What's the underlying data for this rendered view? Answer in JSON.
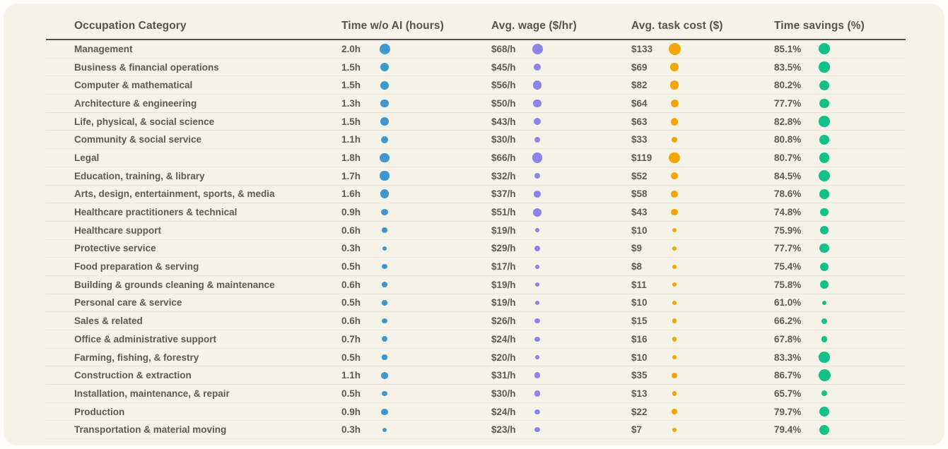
{
  "colors": {
    "page_background": "#fdfcf8",
    "card_background": "#f5f2e8",
    "header_line": "#54524b",
    "header_text": "#56544c",
    "text": "#5d5b51",
    "row_separator": "#e8e5d7",
    "time_dot": "#3e98cf",
    "wage_dot": "#8c84ea",
    "cost_dot": "#f4a600",
    "savings_dot": "#12c088"
  },
  "table": {
    "columns": [
      {
        "label": "Occupation Category"
      },
      {
        "label": "Time w/o AI (hours)"
      },
      {
        "label": "Avg. wage ($/hr)"
      },
      {
        "label": "Avg. task cost ($)"
      },
      {
        "label": "Time savings (%)"
      }
    ],
    "rows": [
      {
        "occupation": "Management",
        "time": "2.0h",
        "time_h": 2.0,
        "wage": "$68/h",
        "wage_hr": 68,
        "cost": "$133",
        "cost_usd": 133,
        "savings": "85.1%",
        "savings_pct": 85.1
      },
      {
        "occupation": "Business & financial operations",
        "time": "1.5h",
        "time_h": 1.5,
        "wage": "$45/h",
        "wage_hr": 45,
        "cost": "$69",
        "cost_usd": 69,
        "savings": "83.5%",
        "savings_pct": 83.5
      },
      {
        "occupation": "Computer & mathematical",
        "time": "1.5h",
        "time_h": 1.5,
        "wage": "$56/h",
        "wage_hr": 56,
        "cost": "$82",
        "cost_usd": 82,
        "savings": "80.2%",
        "savings_pct": 80.2
      },
      {
        "occupation": "Architecture & engineering",
        "time": "1.3h",
        "time_h": 1.3,
        "wage": "$50/h",
        "wage_hr": 50,
        "cost": "$64",
        "cost_usd": 64,
        "savings": "77.7%",
        "savings_pct": 77.7
      },
      {
        "occupation": "Life, physical, & social science",
        "time": "1.5h",
        "time_h": 1.5,
        "wage": "$43/h",
        "wage_hr": 43,
        "cost": "$63",
        "cost_usd": 63,
        "savings": "82.8%",
        "savings_pct": 82.8
      },
      {
        "occupation": "Community & social service",
        "time": "1.1h",
        "time_h": 1.1,
        "wage": "$30/h",
        "wage_hr": 30,
        "cost": "$33",
        "cost_usd": 33,
        "savings": "80.8%",
        "savings_pct": 80.8
      },
      {
        "occupation": "Legal",
        "time": "1.8h",
        "time_h": 1.8,
        "wage": "$66/h",
        "wage_hr": 66,
        "cost": "$119",
        "cost_usd": 119,
        "savings": "80.7%",
        "savings_pct": 80.7
      },
      {
        "occupation": "Education, training, & library",
        "time": "1.7h",
        "time_h": 1.7,
        "wage": "$32/h",
        "wage_hr": 32,
        "cost": "$52",
        "cost_usd": 52,
        "savings": "84.5%",
        "savings_pct": 84.5
      },
      {
        "occupation": "Arts, design, entertainment, sports, & media",
        "time": "1.6h",
        "time_h": 1.6,
        "wage": "$37/h",
        "wage_hr": 37,
        "cost": "$58",
        "cost_usd": 58,
        "savings": "78.6%",
        "savings_pct": 78.6
      },
      {
        "occupation": "Healthcare practitioners & technical",
        "time": "0.9h",
        "time_h": 0.9,
        "wage": "$51/h",
        "wage_hr": 51,
        "cost": "$43",
        "cost_usd": 43,
        "savings": "74.8%",
        "savings_pct": 74.8
      },
      {
        "occupation": "Healthcare support",
        "time": "0.6h",
        "time_h": 0.6,
        "wage": "$19/h",
        "wage_hr": 19,
        "cost": "$10",
        "cost_usd": 10,
        "savings": "75.9%",
        "savings_pct": 75.9
      },
      {
        "occupation": "Protective service",
        "time": "0.3h",
        "time_h": 0.3,
        "wage": "$29/h",
        "wage_hr": 29,
        "cost": "$9",
        "cost_usd": 9,
        "savings": "77.7%",
        "savings_pct": 77.7
      },
      {
        "occupation": "Food preparation & serving",
        "time": "0.5h",
        "time_h": 0.5,
        "wage": "$17/h",
        "wage_hr": 17,
        "cost": "$8",
        "cost_usd": 8,
        "savings": "75.4%",
        "savings_pct": 75.4
      },
      {
        "occupation": "Building & grounds cleaning & maintenance",
        "time": "0.6h",
        "time_h": 0.6,
        "wage": "$19/h",
        "wage_hr": 19,
        "cost": "$11",
        "cost_usd": 11,
        "savings": "75.8%",
        "savings_pct": 75.8
      },
      {
        "occupation": "Personal care & service",
        "time": "0.5h",
        "time_h": 0.5,
        "wage": "$19/h",
        "wage_hr": 19,
        "cost": "$10",
        "cost_usd": 10,
        "savings": "61.0%",
        "savings_pct": 61.0
      },
      {
        "occupation": "Sales & related",
        "time": "0.6h",
        "time_h": 0.6,
        "wage": "$26/h",
        "wage_hr": 26,
        "cost": "$15",
        "cost_usd": 15,
        "savings": "66.2%",
        "savings_pct": 66.2
      },
      {
        "occupation": "Office & administrative support",
        "time": "0.7h",
        "time_h": 0.7,
        "wage": "$24/h",
        "wage_hr": 24,
        "cost": "$16",
        "cost_usd": 16,
        "savings": "67.8%",
        "savings_pct": 67.8
      },
      {
        "occupation": "Farming, fishing, & forestry",
        "time": "0.5h",
        "time_h": 0.5,
        "wage": "$20/h",
        "wage_hr": 20,
        "cost": "$10",
        "cost_usd": 10,
        "savings": "83.3%",
        "savings_pct": 83.3
      },
      {
        "occupation": "Construction & extraction",
        "time": "1.1h",
        "time_h": 1.1,
        "wage": "$31/h",
        "wage_hr": 31,
        "cost": "$35",
        "cost_usd": 35,
        "savings": "86.7%",
        "savings_pct": 86.7
      },
      {
        "occupation": "Installation, maintenance, & repair",
        "time": "0.5h",
        "time_h": 0.5,
        "wage": "$30/h",
        "wage_hr": 30,
        "cost": "$13",
        "cost_usd": 13,
        "savings": "65.7%",
        "savings_pct": 65.7
      },
      {
        "occupation": "Production",
        "time": "0.9h",
        "time_h": 0.9,
        "wage": "$24/h",
        "wage_hr": 24,
        "cost": "$22",
        "cost_usd": 22,
        "savings": "79.7%",
        "savings_pct": 79.7
      },
      {
        "occupation": "Transportation & material moving",
        "time": "0.3h",
        "time_h": 0.3,
        "wage": "$23/h",
        "wage_hr": 23,
        "cost": "$7",
        "cost_usd": 7,
        "savings": "79.4%",
        "savings_pct": 79.4
      }
    ]
  },
  "chart_data": {
    "type": "table",
    "title": "",
    "categories": [
      "Management",
      "Business & financial operations",
      "Computer & mathematical",
      "Architecture & engineering",
      "Life, physical, & social science",
      "Community & social service",
      "Legal",
      "Education, training, & library",
      "Arts, design, entertainment, sports, & media",
      "Healthcare practitioners & technical",
      "Healthcare support",
      "Protective service",
      "Food preparation & serving",
      "Building & grounds cleaning & maintenance",
      "Personal care & service",
      "Sales & related",
      "Office & administrative support",
      "Farming, fishing, & forestry",
      "Construction & extraction",
      "Installation, maintenance, & repair",
      "Production",
      "Transportation & material moving"
    ],
    "series": [
      {
        "name": "Time w/o AI (hours)",
        "values": [
          2.0,
          1.5,
          1.5,
          1.3,
          1.5,
          1.1,
          1.8,
          1.7,
          1.6,
          0.9,
          0.6,
          0.3,
          0.5,
          0.6,
          0.5,
          0.6,
          0.7,
          0.5,
          1.1,
          0.5,
          0.9,
          0.3
        ]
      },
      {
        "name": "Avg. wage ($/hr)",
        "values": [
          68,
          45,
          56,
          50,
          43,
          30,
          66,
          32,
          37,
          51,
          19,
          29,
          17,
          19,
          19,
          26,
          24,
          20,
          31,
          30,
          24,
          23
        ]
      },
      {
        "name": "Avg. task cost ($)",
        "values": [
          133,
          69,
          82,
          64,
          63,
          33,
          119,
          52,
          58,
          43,
          10,
          9,
          8,
          11,
          10,
          15,
          16,
          10,
          35,
          13,
          22,
          7
        ]
      },
      {
        "name": "Time savings (%)",
        "values": [
          85.1,
          83.5,
          80.2,
          77.7,
          82.8,
          80.8,
          80.7,
          84.5,
          78.6,
          74.8,
          75.9,
          77.7,
          75.4,
          75.8,
          61.0,
          66.2,
          67.8,
          83.3,
          86.7,
          65.7,
          79.7,
          79.4
        ]
      }
    ],
    "legend_position": "none",
    "grid": "horizontal-separators",
    "note": "Dot size in each numeric column is proportional to the cell value"
  }
}
